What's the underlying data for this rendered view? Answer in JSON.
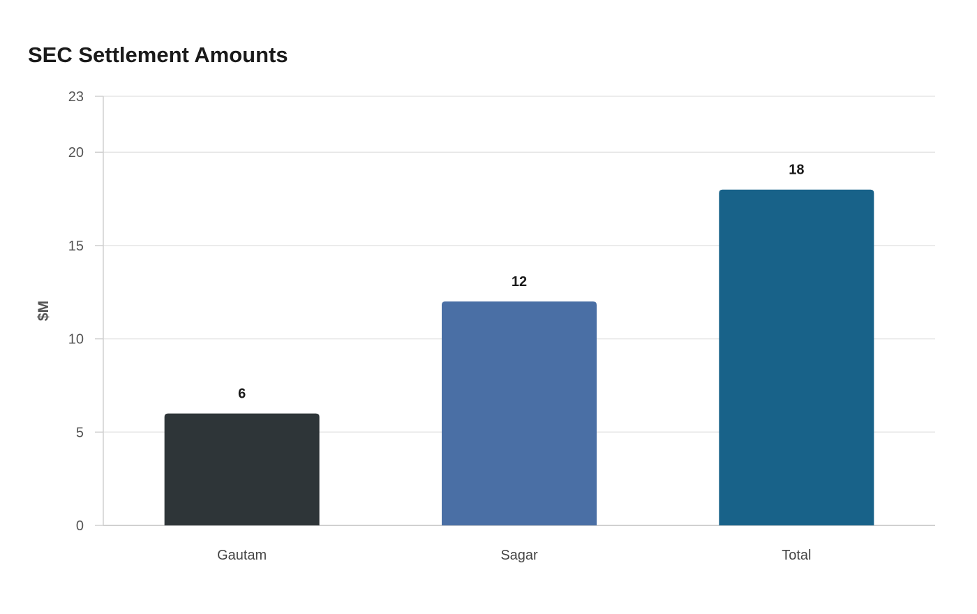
{
  "chart_data": {
    "type": "bar",
    "title": "SEC Settlement Amounts",
    "xlabel": "",
    "ylabel": "$M",
    "categories": [
      "Gautam",
      "Sagar",
      "Total"
    ],
    "values": [
      6,
      12,
      18
    ],
    "colors": [
      "#2e3538",
      "#4a6fa5",
      "#186289"
    ],
    "ylim": [
      0,
      23
    ],
    "yticks": [
      0,
      5,
      10,
      15,
      20,
      23
    ],
    "grid": true,
    "legend": "none"
  }
}
